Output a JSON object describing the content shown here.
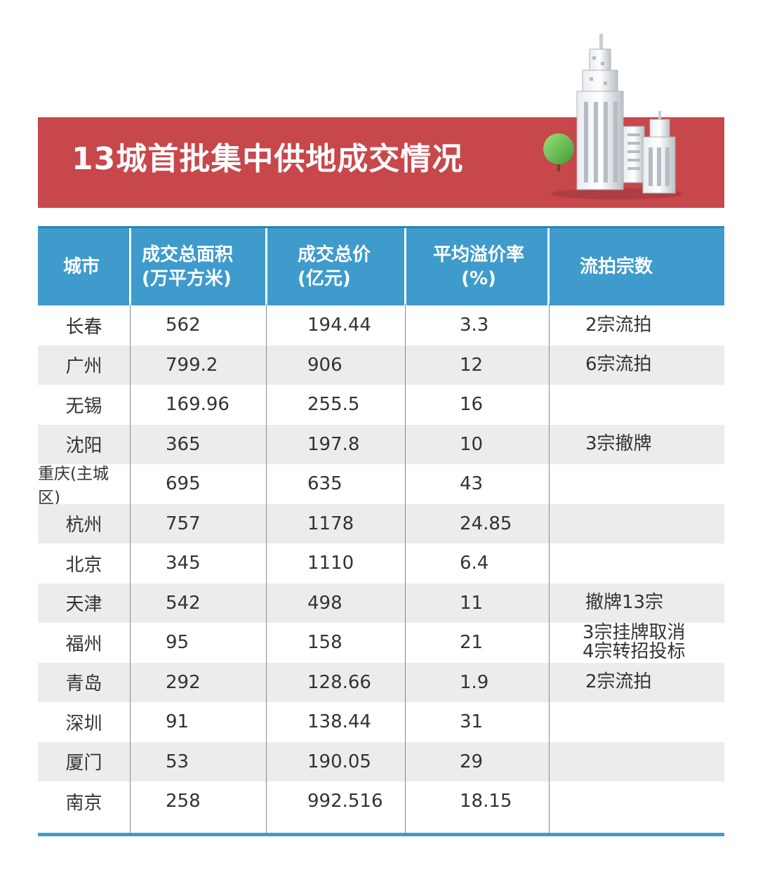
{
  "banner": {
    "title": "13城首批集中供地成交情况"
  },
  "table": {
    "headers": [
      {
        "line1": "城市",
        "line2": ""
      },
      {
        "line1": "成交总面积",
        "line2": "(万平方米)"
      },
      {
        "line1": "成交总价",
        "line2": "(亿元)"
      },
      {
        "line1": "平均溢价率",
        "line2": "(%)"
      },
      {
        "line1": "流拍宗数",
        "line2": ""
      }
    ],
    "rows": [
      {
        "city": "长春",
        "area": "562",
        "price": "194.44",
        "premium": "3.3",
        "note1": "2宗流拍",
        "note2": ""
      },
      {
        "city": "广州",
        "area": "799.2",
        "price": "906",
        "premium": "12",
        "note1": "6宗流拍",
        "note2": ""
      },
      {
        "city": "无锡",
        "area": "169.96",
        "price": "255.5",
        "premium": "16",
        "note1": "",
        "note2": ""
      },
      {
        "city": "沈阳",
        "area": "365",
        "price": "197.8",
        "premium": "10",
        "note1": "3宗撤牌",
        "note2": ""
      },
      {
        "city": "重庆(主城区)",
        "area": "695",
        "price": "635",
        "premium": "43",
        "note1": "",
        "note2": ""
      },
      {
        "city": "杭州",
        "area": "757",
        "price": "1178",
        "premium": "24.85",
        "note1": "",
        "note2": ""
      },
      {
        "city": "北京",
        "area": "345",
        "price": "1110",
        "premium": "6.4",
        "note1": "",
        "note2": ""
      },
      {
        "city": "天津",
        "area": "542",
        "price": "498",
        "premium": "11",
        "note1": "撤牌13宗",
        "note2": ""
      },
      {
        "city": "福州",
        "area": "95",
        "price": "158",
        "premium": "21",
        "note1": "3宗挂牌取消",
        "note2": "4宗转招投标"
      },
      {
        "city": "青岛",
        "area": "292",
        "price": "128.66",
        "premium": "1.9",
        "note1": "2宗流拍",
        "note2": ""
      },
      {
        "city": "深圳",
        "area": "91",
        "price": "138.44",
        "premium": "31",
        "note1": "",
        "note2": ""
      },
      {
        "city": "厦门",
        "area": "53",
        "price": "190.05",
        "premium": "29",
        "note1": "",
        "note2": ""
      },
      {
        "city": "南京",
        "area": "258",
        "price": "992.516",
        "premium": "18.15",
        "note1": "",
        "note2": ""
      }
    ]
  },
  "colors": {
    "banner": "#c7474b",
    "header": "#3e9bcc",
    "alt_row": "#ececec"
  }
}
